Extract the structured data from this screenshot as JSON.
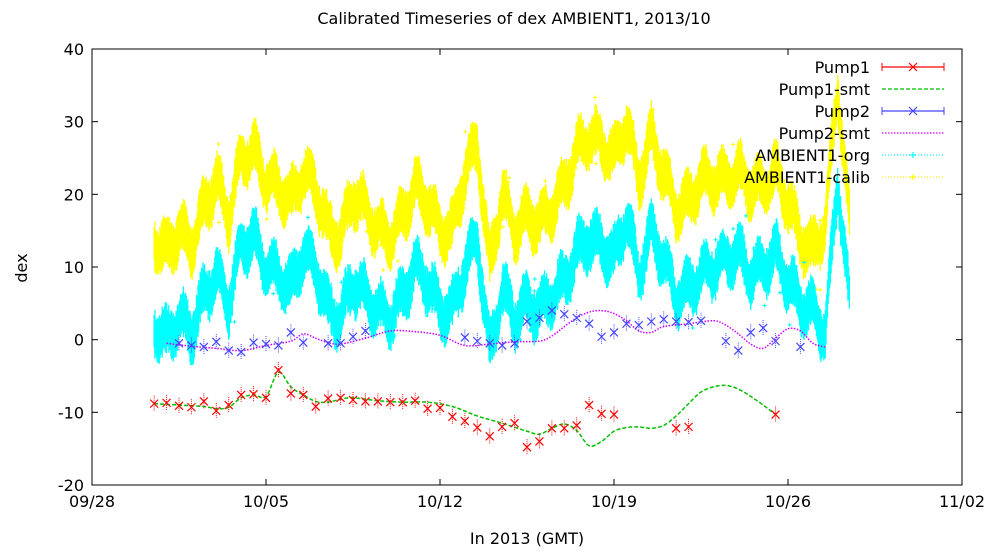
{
  "chart_data": {
    "type": "line",
    "title": "Calibrated Timeseries of dex AMBIENT1, 2013/10",
    "xlabel": "In 2013 (GMT)",
    "ylabel": "dex",
    "xlim": [
      "2013-09-28",
      "2013-11-02"
    ],
    "ylim": [
      -20,
      40
    ],
    "x_ticks": [
      "09/28",
      "10/05",
      "10/12",
      "10/19",
      "10/26",
      "11/02"
    ],
    "y_ticks": [
      -20,
      -10,
      0,
      10,
      20,
      30,
      40
    ],
    "grid": false,
    "legend_position": "top-right",
    "series": [
      {
        "name": "Pump1",
        "style": "points-with-errorbars",
        "color": "#ff0000",
        "marker": "x",
        "x": [
          "2013-09-30T12:00",
          "2013-10-01T00:00",
          "2013-10-01T12:00",
          "2013-10-02T00:00",
          "2013-10-02T12:00",
          "2013-10-03T00:00",
          "2013-10-03T12:00",
          "2013-10-04T00:00",
          "2013-10-04T12:00",
          "2013-10-05T00:00",
          "2013-10-05T12:00",
          "2013-10-06T00:00",
          "2013-10-06T12:00",
          "2013-10-07T00:00",
          "2013-10-07T12:00",
          "2013-10-08T00:00",
          "2013-10-08T12:00",
          "2013-10-09T00:00",
          "2013-10-09T12:00",
          "2013-10-10T00:00",
          "2013-10-10T12:00",
          "2013-10-11T00:00",
          "2013-10-11T12:00",
          "2013-10-12T00:00",
          "2013-10-12T12:00",
          "2013-10-13T00:00",
          "2013-10-13T12:00",
          "2013-10-14T00:00",
          "2013-10-14T12:00",
          "2013-10-15T00:00",
          "2013-10-15T12:00",
          "2013-10-16T00:00",
          "2013-10-16T12:00",
          "2013-10-17T00:00",
          "2013-10-17T12:00",
          "2013-10-18T00:00",
          "2013-10-18T12:00",
          "2013-10-19T00:00",
          "2013-10-21T12:00",
          "2013-10-22T00:00",
          "2013-10-25T12:00"
        ],
        "y": [
          -8.8,
          -8.7,
          -9.1,
          -9.3,
          -8.5,
          -9.8,
          -9.0,
          -7.6,
          -7.5,
          -8.0,
          -4.2,
          -7.4,
          -7.6,
          -9.2,
          -8.1,
          -8.0,
          -8.3,
          -8.5,
          -8.5,
          -8.6,
          -8.6,
          -8.4,
          -9.5,
          -9.4,
          -10.6,
          -11.2,
          -12.1,
          -13.3,
          -12.0,
          -11.5,
          -14.8,
          -14.0,
          -12.2,
          -12.2,
          -11.8,
          -9.0,
          -10.2,
          -10.3,
          -12.2,
          -12.0,
          -10.3
        ]
      },
      {
        "name": "Pump1-smt",
        "style": "dashed-line",
        "color": "#00c000",
        "x": [
          "2013-09-30T12:00",
          "2013-10-01T12:00",
          "2013-10-02T12:00",
          "2013-10-03T00:00",
          "2013-10-03T12:00",
          "2013-10-04T00:00",
          "2013-10-04T12:00",
          "2013-10-05T00:00",
          "2013-10-05T12:00",
          "2013-10-06T00:00",
          "2013-10-06T12:00",
          "2013-10-07T00:00",
          "2013-10-07T12:00",
          "2013-10-08T00:00",
          "2013-10-08T12:00",
          "2013-10-09T12:00",
          "2013-10-10T12:00",
          "2013-10-11T12:00",
          "2013-10-12T12:00",
          "2013-10-13T12:00",
          "2013-10-14T12:00",
          "2013-10-15T12:00",
          "2013-10-16T00:00",
          "2013-10-16T12:00",
          "2013-10-17T00:00",
          "2013-10-17T12:00",
          "2013-10-18T00:00",
          "2013-10-18T12:00",
          "2013-10-19T00:00",
          "2013-10-19T12:00",
          "2013-10-20T00:00",
          "2013-10-20T12:00",
          "2013-10-21T00:00",
          "2013-10-21T12:00",
          "2013-10-22T00:00",
          "2013-10-22T12:00",
          "2013-10-23T00:00",
          "2013-10-23T12:00",
          "2013-10-24T00:00",
          "2013-10-24T12:00",
          "2013-10-25T00:00",
          "2013-10-25T12:00"
        ],
        "y": [
          -8.8,
          -9.0,
          -9.2,
          -9.5,
          -9.3,
          -8.0,
          -7.6,
          -7.8,
          -4.5,
          -6.5,
          -7.6,
          -8.5,
          -8.6,
          -8.2,
          -8.0,
          -8.4,
          -8.6,
          -8.6,
          -9.2,
          -10.5,
          -11.5,
          -12.6,
          -13.0,
          -12.2,
          -11.6,
          -12.5,
          -14.6,
          -14.0,
          -12.6,
          -12.1,
          -12.0,
          -12.2,
          -11.8,
          -10.5,
          -8.8,
          -7.2,
          -6.5,
          -6.3,
          -6.8,
          -7.8,
          -9.0,
          -10.3
        ]
      },
      {
        "name": "Pump2",
        "style": "points-with-errorbars",
        "color": "#4444ff",
        "marker": "x",
        "x": [
          "2013-10-01T12:00",
          "2013-10-02T00:00",
          "2013-10-02T12:00",
          "2013-10-03T00:00",
          "2013-10-03T12:00",
          "2013-10-04T00:00",
          "2013-10-04T12:00",
          "2013-10-05T00:00",
          "2013-10-05T12:00",
          "2013-10-06T00:00",
          "2013-10-06T12:00",
          "2013-10-07T12:00",
          "2013-10-08T00:00",
          "2013-10-08T12:00",
          "2013-10-09T00:00",
          "2013-10-13T00:00",
          "2013-10-13T12:00",
          "2013-10-14T00:00",
          "2013-10-14T12:00",
          "2013-10-15T00:00",
          "2013-10-15T12:00",
          "2013-10-16T00:00",
          "2013-10-16T12:00",
          "2013-10-17T00:00",
          "2013-10-17T12:00",
          "2013-10-18T00:00",
          "2013-10-18T12:00",
          "2013-10-19T00:00",
          "2013-10-19T12:00",
          "2013-10-20T00:00",
          "2013-10-20T12:00",
          "2013-10-21T00:00",
          "2013-10-21T12:00",
          "2013-10-22T00:00",
          "2013-10-22T12:00",
          "2013-10-23T12:00",
          "2013-10-24T00:00",
          "2013-10-24T12:00",
          "2013-10-25T00:00",
          "2013-10-25T12:00",
          "2013-10-26T12:00"
        ],
        "y": [
          -0.5,
          -0.8,
          -1.0,
          -0.3,
          -1.5,
          -1.7,
          -0.4,
          -0.6,
          -0.8,
          1.0,
          -0.4,
          -0.5,
          -0.5,
          0.4,
          1.2,
          0.3,
          -0.2,
          -0.5,
          -0.8,
          -0.5,
          2.5,
          3.0,
          4.0,
          3.5,
          3.0,
          2.2,
          0.4,
          1.0,
          2.2,
          2.0,
          2.5,
          2.8,
          2.5,
          2.4,
          2.6,
          -0.2,
          -1.5,
          1.0,
          1.6,
          -0.2,
          -1.0
        ]
      },
      {
        "name": "Pump2-smt",
        "style": "dotted-line",
        "color": "#cc00ff",
        "x": [
          "2013-10-01T00:00",
          "2013-10-02T00:00",
          "2013-10-03T00:00",
          "2013-10-04T00:00",
          "2013-10-05T00:00",
          "2013-10-06T00:00",
          "2013-10-06T12:00",
          "2013-10-07T00:00",
          "2013-10-07T12:00",
          "2013-10-08T00:00",
          "2013-10-09T00:00",
          "2013-10-10T00:00",
          "2013-10-11T00:00",
          "2013-10-12T00:00",
          "2013-10-13T00:00",
          "2013-10-14T00:00",
          "2013-10-15T00:00",
          "2013-10-16T00:00",
          "2013-10-16T12:00",
          "2013-10-17T00:00",
          "2013-10-17T12:00",
          "2013-10-18T00:00",
          "2013-10-18T12:00",
          "2013-10-19T00:00",
          "2013-10-19T12:00",
          "2013-10-20T00:00",
          "2013-10-20T12:00",
          "2013-10-21T00:00",
          "2013-10-22T00:00",
          "2013-10-23T00:00",
          "2013-10-23T12:00",
          "2013-10-24T00:00",
          "2013-10-24T12:00",
          "2013-10-25T00:00",
          "2013-10-25T12:00",
          "2013-10-26T00:00",
          "2013-10-26T12:00",
          "2013-10-27T00:00",
          "2013-10-27T12:00"
        ],
        "y": [
          -0.5,
          -0.9,
          -1.2,
          -1.5,
          -0.8,
          -0.2,
          0.8,
          0.2,
          -0.4,
          -0.6,
          0.2,
          1.2,
          1.1,
          0.6,
          -0.8,
          -0.6,
          -0.3,
          -0.2,
          0.5,
          1.8,
          3.0,
          3.8,
          4.0,
          3.6,
          2.6,
          1.2,
          1.0,
          1.8,
          2.2,
          2.6,
          2.0,
          0.8,
          -0.6,
          -1.2,
          0.2,
          1.5,
          1.2,
          -0.5,
          -1.0
        ]
      },
      {
        "name": "AMBIENT1-org",
        "style": "dense-points",
        "color": "#00ffff",
        "marker": "*",
        "x": [
          "2013-09-30T12:00",
          "2013-10-01T00:00",
          "2013-10-01T12:00",
          "2013-10-02T00:00",
          "2013-10-02T12:00",
          "2013-10-03T00:00",
          "2013-10-03T12:00",
          "2013-10-04T00:00",
          "2013-10-04T12:00",
          "2013-10-05T00:00",
          "2013-10-05T12:00",
          "2013-10-06T00:00",
          "2013-10-06T12:00",
          "2013-10-07T00:00",
          "2013-10-07T12:00",
          "2013-10-08T00:00",
          "2013-10-08T12:00",
          "2013-10-09T00:00",
          "2013-10-09T12:00",
          "2013-10-10T00:00",
          "2013-10-10T12:00",
          "2013-10-11T00:00",
          "2013-10-11T12:00",
          "2013-10-12T00:00",
          "2013-10-12T12:00",
          "2013-10-13T00:00",
          "2013-10-13T12:00",
          "2013-10-14T00:00",
          "2013-10-14T12:00",
          "2013-10-15T00:00",
          "2013-10-15T12:00",
          "2013-10-16T00:00",
          "2013-10-16T12:00",
          "2013-10-17T00:00",
          "2013-10-17T12:00",
          "2013-10-18T00:00",
          "2013-10-18T12:00",
          "2013-10-19T00:00",
          "2013-10-19T12:00",
          "2013-10-20T00:00",
          "2013-10-20T12:00",
          "2013-10-21T00:00",
          "2013-10-21T12:00",
          "2013-10-22T00:00",
          "2013-10-22T12:00",
          "2013-10-23T00:00",
          "2013-10-23T12:00",
          "2013-10-24T00:00",
          "2013-10-24T12:00",
          "2013-10-25T00:00",
          "2013-10-25T12:00",
          "2013-10-26T00:00",
          "2013-10-26T12:00",
          "2013-10-27T00:00",
          "2013-10-27T12:00",
          "2013-10-28T00:00",
          "2013-10-28T12:00"
        ],
        "y": [
          2,
          0,
          3,
          1,
          6,
          9,
          5,
          13,
          14,
          10,
          9,
          7,
          12,
          10,
          4,
          3,
          8,
          6,
          4,
          3,
          6,
          10,
          8,
          4,
          4,
          10,
          14,
          -2,
          7,
          3,
          5,
          4,
          6,
          8,
          12,
          14,
          13,
          11,
          17,
          9,
          15,
          11,
          6,
          7,
          9,
          10,
          11,
          12,
          9,
          10,
          12,
          8,
          5,
          4,
          1,
          22,
          4
        ]
      },
      {
        "name": "AMBIENT1-calib",
        "style": "dense-points",
        "color": "#ffff00",
        "marker": "+",
        "x": [
          "2013-09-30T12:00",
          "2013-10-01T00:00",
          "2013-10-01T12:00",
          "2013-10-02T00:00",
          "2013-10-02T12:00",
          "2013-10-03T00:00",
          "2013-10-03T12:00",
          "2013-10-04T00:00",
          "2013-10-04T12:00",
          "2013-10-05T00:00",
          "2013-10-05T12:00",
          "2013-10-06T00:00",
          "2013-10-06T12:00",
          "2013-10-07T00:00",
          "2013-10-07T12:00",
          "2013-10-08T00:00",
          "2013-10-08T12:00",
          "2013-10-09T00:00",
          "2013-10-09T12:00",
          "2013-10-10T00:00",
          "2013-10-10T12:00",
          "2013-10-11T00:00",
          "2013-10-11T12:00",
          "2013-10-12T00:00",
          "2013-10-12T12:00",
          "2013-10-13T00:00",
          "2013-10-13T12:00",
          "2013-10-14T00:00",
          "2013-10-14T12:00",
          "2013-10-15T00:00",
          "2013-10-15T12:00",
          "2013-10-16T00:00",
          "2013-10-16T12:00",
          "2013-10-17T00:00",
          "2013-10-17T12:00",
          "2013-10-18T00:00",
          "2013-10-18T12:00",
          "2013-10-19T00:00",
          "2013-10-19T12:00",
          "2013-10-20T00:00",
          "2013-10-20T12:00",
          "2013-10-21T00:00",
          "2013-10-21T12:00",
          "2013-10-22T00:00",
          "2013-10-22T12:00",
          "2013-10-23T00:00",
          "2013-10-23T12:00",
          "2013-10-24T00:00",
          "2013-10-24T12:00",
          "2013-10-25T00:00",
          "2013-10-25T12:00",
          "2013-10-26T00:00",
          "2013-10-26T12:00",
          "2013-10-27T00:00",
          "2013-10-27T12:00",
          "2013-10-28T00:00",
          "2013-10-28T12:00"
        ],
        "y": [
          14,
          12,
          15,
          13,
          18,
          22,
          17,
          25,
          26,
          22,
          21,
          19,
          23,
          21,
          15,
          14,
          20,
          18,
          15,
          14,
          17,
          21,
          19,
          15,
          15,
          23,
          27,
          10,
          20,
          15,
          17,
          16,
          18,
          21,
          26,
          28,
          27,
          25,
          30,
          22,
          28,
          23,
          18,
          19,
          22,
          22,
          22,
          23,
          21,
          21,
          23,
          19,
          14,
          12,
          16,
          35,
          15
        ]
      }
    ]
  }
}
